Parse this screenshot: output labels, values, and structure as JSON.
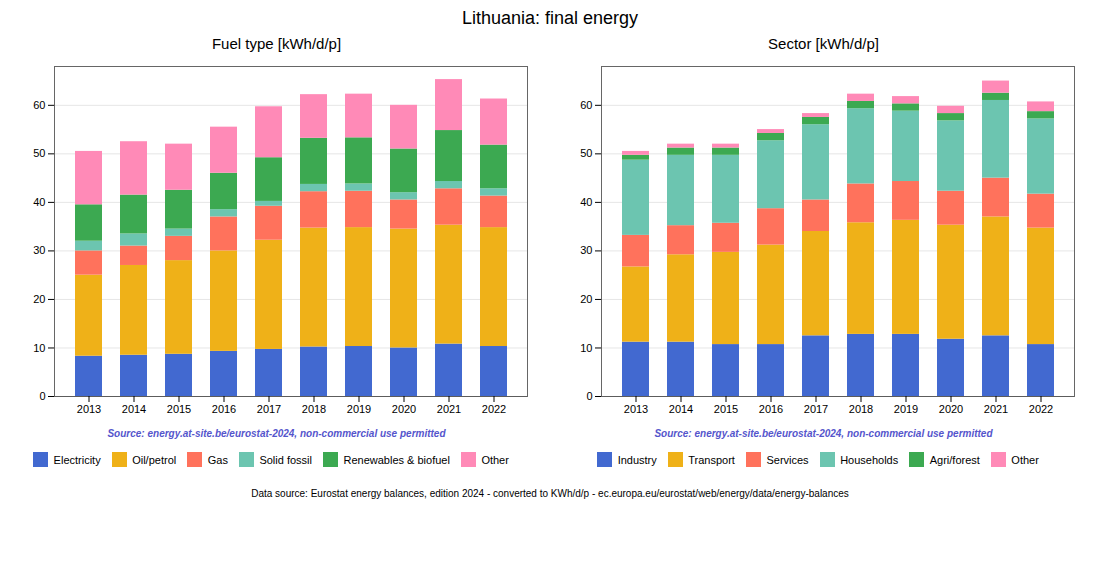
{
  "title": "Lithuania: final energy",
  "annotations": [
    {
      "text": "Data source: Eurostat energy balances, edition 2024 - converted to KWh/d/p - ec.europa.eu/eurostat/web/energy/data/energy-balances"
    }
  ],
  "chart_data": [
    {
      "type": "bar",
      "stacked": true,
      "title": "Fuel type [kWh/d/p]",
      "categories": [
        "2013",
        "2014",
        "2015",
        "2016",
        "2017",
        "2018",
        "2019",
        "2020",
        "2021",
        "2022"
      ],
      "series": [
        {
          "name": "Electricity",
          "values": [
            8.3,
            8.5,
            8.7,
            9.3,
            9.7,
            10.2,
            10.3,
            10.0,
            10.8,
            10.3
          ]
        },
        {
          "name": "Oil/petrol",
          "values": [
            16.7,
            18.5,
            19.3,
            20.7,
            22.5,
            24.5,
            24.5,
            24.5,
            24.5,
            24.5
          ]
        },
        {
          "name": "Gas",
          "values": [
            5.0,
            4.0,
            5.0,
            7.0,
            7.0,
            7.5,
            7.5,
            6.0,
            7.5,
            6.5
          ]
        },
        {
          "name": "Solid fossil",
          "values": [
            2.0,
            2.5,
            1.5,
            1.5,
            1.0,
            1.5,
            1.5,
            1.5,
            1.5,
            1.5
          ]
        },
        {
          "name": "Renewables & biofuel",
          "values": [
            7.5,
            8.0,
            8.0,
            7.5,
            9.0,
            9.5,
            9.5,
            9.0,
            10.5,
            9.0
          ]
        },
        {
          "name": "Other",
          "values": [
            11.0,
            11.0,
            9.5,
            9.5,
            10.5,
            9.0,
            9.0,
            9.0,
            10.5,
            9.5
          ]
        }
      ],
      "ylim": [
        0,
        68
      ],
      "yticks": [
        0,
        10,
        20,
        30,
        40,
        50,
        60
      ],
      "grid": true,
      "legend": "bottom",
      "annotations": [
        {
          "text": "Source: energy.at-site.be/eurostat-2024, non-commercial use permitted",
          "color": "#5555cc"
        }
      ]
    },
    {
      "type": "bar",
      "stacked": true,
      "title": "Sector [kWh/d/p]",
      "categories": [
        "2013",
        "2014",
        "2015",
        "2016",
        "2017",
        "2018",
        "2019",
        "2020",
        "2021",
        "2022"
      ],
      "series": [
        {
          "name": "Industry",
          "values": [
            11.2,
            11.2,
            10.7,
            10.7,
            12.5,
            12.8,
            12.8,
            11.8,
            12.5,
            10.7
          ]
        },
        {
          "name": "Transport",
          "values": [
            15.5,
            18.0,
            19.0,
            20.5,
            21.5,
            23.0,
            23.5,
            23.5,
            24.5,
            24.0
          ]
        },
        {
          "name": "Services",
          "values": [
            6.5,
            6.0,
            6.0,
            7.5,
            6.5,
            8.0,
            8.0,
            7.0,
            8.0,
            7.0
          ]
        },
        {
          "name": "Households",
          "values": [
            15.5,
            14.5,
            14.0,
            14.0,
            15.5,
            15.5,
            14.5,
            14.5,
            16.0,
            15.5
          ]
        },
        {
          "name": "Agri/forest",
          "values": [
            1.0,
            1.5,
            1.5,
            1.5,
            1.5,
            1.5,
            1.5,
            1.5,
            1.5,
            1.5
          ]
        },
        {
          "name": "Other",
          "values": [
            0.8,
            0.8,
            0.8,
            0.8,
            0.8,
            1.5,
            1.5,
            1.5,
            2.5,
            2.0
          ]
        }
      ],
      "ylim": [
        0,
        68
      ],
      "yticks": [
        0,
        10,
        20,
        30,
        40,
        50,
        60
      ],
      "grid": true,
      "legend": "bottom",
      "annotations": [
        {
          "text": "Source: energy.at-site.be/eurostat-2024, non-commercial use permitted",
          "color": "#5555cc"
        }
      ]
    }
  ]
}
